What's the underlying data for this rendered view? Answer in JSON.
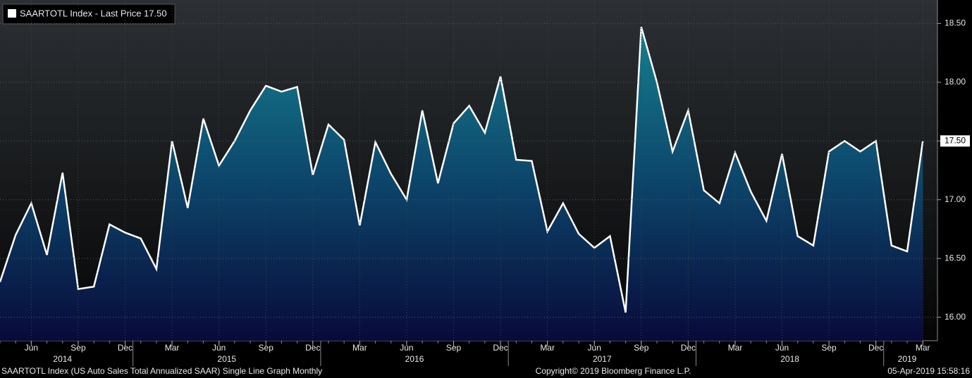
{
  "chart_data": {
    "type": "line",
    "x": [
      "2014-04",
      "2014-05",
      "2014-06",
      "2014-07",
      "2014-08",
      "2014-09",
      "2014-10",
      "2014-11",
      "2014-12",
      "2015-01",
      "2015-02",
      "2015-03",
      "2015-04",
      "2015-05",
      "2015-06",
      "2015-07",
      "2015-08",
      "2015-09",
      "2015-10",
      "2015-11",
      "2015-12",
      "2016-01",
      "2016-02",
      "2016-03",
      "2016-04",
      "2016-05",
      "2016-06",
      "2016-07",
      "2016-08",
      "2016-09",
      "2016-10",
      "2016-11",
      "2016-12",
      "2017-01",
      "2017-02",
      "2017-03",
      "2017-04",
      "2017-05",
      "2017-06",
      "2017-07",
      "2017-08",
      "2017-09",
      "2017-10",
      "2017-11",
      "2017-12",
      "2018-01",
      "2018-02",
      "2018-03",
      "2018-04",
      "2018-05",
      "2018-06",
      "2018-07",
      "2018-08",
      "2018-09",
      "2018-10",
      "2018-11",
      "2018-12",
      "2019-01",
      "2019-02",
      "2019-03"
    ],
    "series": [
      {
        "name": "SAARTOTL Index - Last Price 17.50",
        "color": "#ffffff",
        "values": [
          16.3,
          16.7,
          16.97,
          16.53,
          17.23,
          16.24,
          16.26,
          16.79,
          16.72,
          16.67,
          16.41,
          17.5,
          16.93,
          17.69,
          17.29,
          17.5,
          17.76,
          17.97,
          17.92,
          17.96,
          17.21,
          17.64,
          17.51,
          16.78,
          17.49,
          17.22,
          17.0,
          17.76,
          17.14,
          17.65,
          17.8,
          17.57,
          18.05,
          17.34,
          17.33,
          16.73,
          16.97,
          16.71,
          16.59,
          16.69,
          16.04,
          18.47,
          18.0,
          17.41,
          17.76,
          17.08,
          16.97,
          17.4,
          17.07,
          16.82,
          17.39,
          16.69,
          16.61,
          17.41,
          17.5,
          17.41,
          17.5,
          16.61,
          16.56,
          17.5
        ]
      }
    ],
    "last_value_label": "17.50",
    "ylim": [
      15.8,
      18.7
    ],
    "yticks": [
      {
        "value": 16,
        "label": "16.00"
      },
      {
        "value": 16.5,
        "label": "16.50"
      },
      {
        "value": 17,
        "label": "17.00"
      },
      {
        "value": 17.5,
        "label": "17.50"
      },
      {
        "value": 18,
        "label": "18.00"
      },
      {
        "value": 18.5,
        "label": "18.50"
      }
    ],
    "xticks": [
      {
        "value": "2014-06",
        "label": "Jun"
      },
      {
        "value": "2014-09",
        "label": "Sep"
      },
      {
        "value": "2014-12",
        "label": "Dec"
      },
      {
        "value": "2015-03",
        "label": "Mar"
      },
      {
        "value": "2015-06",
        "label": "Jun"
      },
      {
        "value": "2015-09",
        "label": "Sep"
      },
      {
        "value": "2015-12",
        "label": "Dec"
      },
      {
        "value": "2016-03",
        "label": "Mar"
      },
      {
        "value": "2016-06",
        "label": "Jun"
      },
      {
        "value": "2016-09",
        "label": "Sep"
      },
      {
        "value": "2016-12",
        "label": "Dec"
      },
      {
        "value": "2017-03",
        "label": "Mar"
      },
      {
        "value": "2017-06",
        "label": "Jun"
      },
      {
        "value": "2017-09",
        "label": "Sep"
      },
      {
        "value": "2017-12",
        "label": "Dec"
      },
      {
        "value": "2018-03",
        "label": "Mar"
      },
      {
        "value": "2018-06",
        "label": "Jun"
      },
      {
        "value": "2018-09",
        "label": "Sep"
      },
      {
        "value": "2018-12",
        "label": "Dec"
      },
      {
        "value": "2019-03",
        "label": "Mar"
      }
    ],
    "year_labels": [
      "2014",
      "2015",
      "2016",
      "2017",
      "2018",
      "2019"
    ],
    "grid": true,
    "legend": "top-left",
    "footer": {
      "left": "SAARTOTL Index (US Auto Sales Total Annualized SAAR) Single Line Graph  Monthly",
      "center": "Copyright© 2019 Bloomberg Finance L.P.",
      "right": "05-Apr-2019 15:58:16"
    }
  }
}
